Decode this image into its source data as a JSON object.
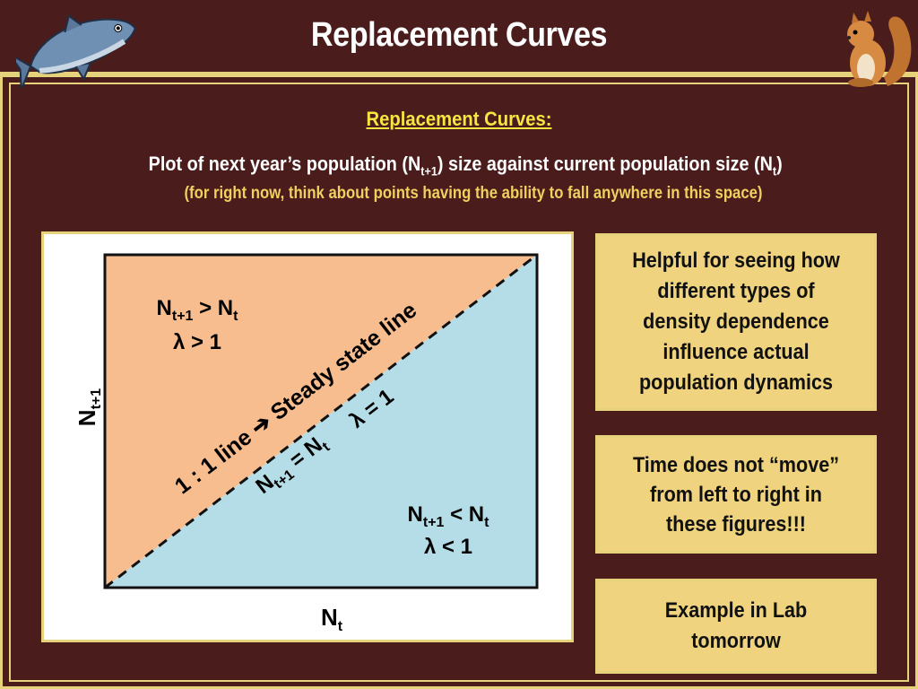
{
  "header": {
    "title": "Replacement Curves"
  },
  "intro": {
    "subtitle": "Replacement Curves:",
    "description_main": "Plot of next year’s population (N",
    "description_sub1": "t+1",
    "description_mid": ") size against current population size (N",
    "description_sub2": "t",
    "description_end": ")",
    "note": "(for right now, think about points having the ability to fall anywhere in this space)"
  },
  "diagram": {
    "y_axis_label_base": "N",
    "y_axis_label_sub": "t+1",
    "x_axis_label_base": "N",
    "x_axis_label_sub": "t",
    "upper_region": {
      "relation_left": "N",
      "relation_left_sub": "t+1",
      "relation_op": " > ",
      "relation_right": "N",
      "relation_right_sub": "t",
      "lambda": "λ > 1"
    },
    "lower_region": {
      "relation_left": "N",
      "relation_left_sub": "t+1",
      "relation_op": " < ",
      "relation_right": "N",
      "relation_right_sub": "t",
      "lambda": "λ < 1"
    },
    "diagonal_label_1": "1 : 1 line ",
    "diagonal_arrow": "➔",
    "diagonal_label_2": " Steady state line",
    "diagonal_eq_left": "N",
    "diagonal_eq_left_sub": "t+1",
    "diagonal_eq_mid": " = N",
    "diagonal_eq_right_sub": "t",
    "diagonal_lambda": "λ = 1",
    "colors": {
      "upper_fill": "#f7bd8e",
      "lower_fill": "#b5dde8",
      "axis": "#111111"
    }
  },
  "side_notes": [
    {
      "text": "Helpful for seeing how different types of density dependence influence actual population dynamics"
    },
    {
      "text": "Time does not “move” from left to right in these figures!!!"
    },
    {
      "text": "Example in Lab tomorrow"
    }
  ],
  "icons": {
    "left": "salmon-fish-icon",
    "right": "squirrel-icon"
  },
  "colors": {
    "background": "#4a1c1b",
    "accent": "#e7d27c",
    "subtitle": "#f6e640",
    "note_box": "#f0d37e"
  }
}
